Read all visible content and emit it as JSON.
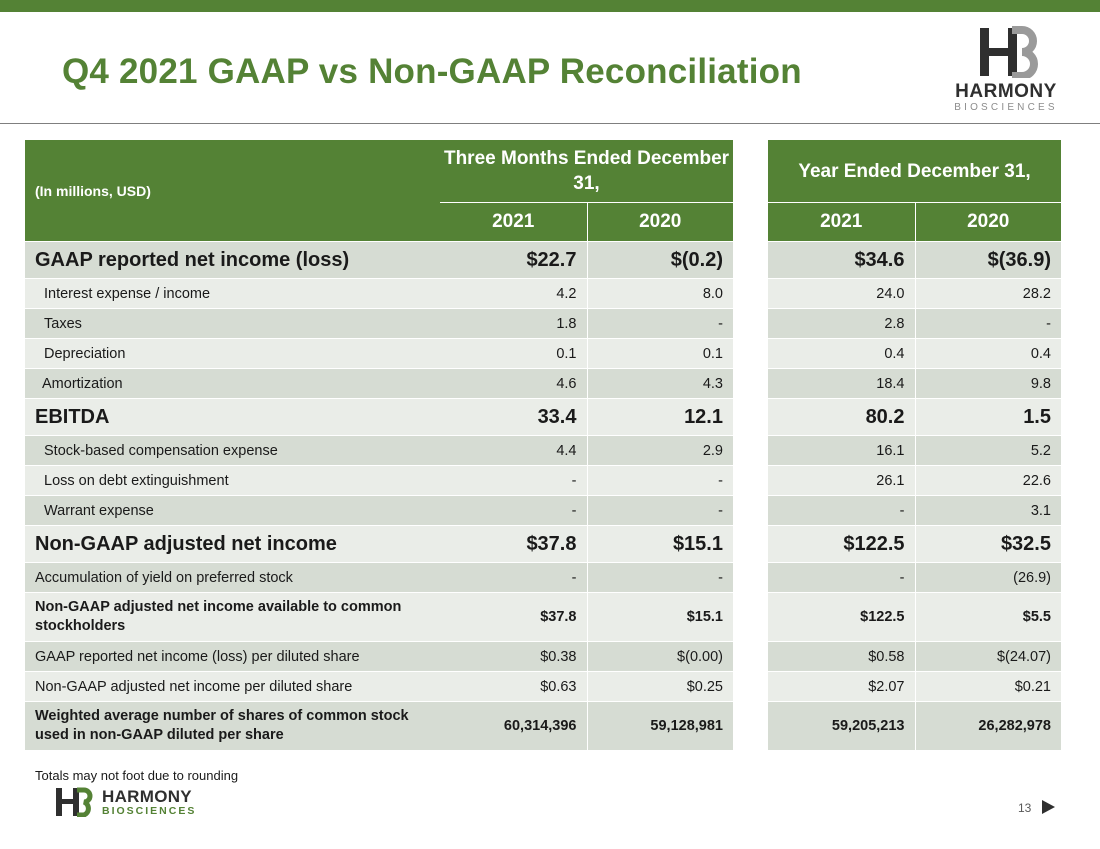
{
  "slide": {
    "title": "Q4 2021 GAAP vs Non-GAAP Reconciliation",
    "footnote": "Totals may not foot due to rounding",
    "page_number": "13",
    "accent_color": "#548235"
  },
  "logo": {
    "word": "HARMONY",
    "sub": "BIOSCIENCES"
  },
  "table": {
    "unit_label": "(In millions, USD)",
    "group_three_months": "Three Months Ended December 31,",
    "group_year": "Year Ended December 31,",
    "years": [
      "2021",
      "2020",
      "2021",
      "2020"
    ],
    "rows": [
      {
        "label": "GAAP reported net income (loss)",
        "values": [
          "$22.7",
          "$(0.2)",
          "$34.6",
          "$(36.9)"
        ]
      },
      {
        "label": "Interest expense / income",
        "values": [
          "4.2",
          "8.0",
          "24.0",
          "28.2"
        ]
      },
      {
        "label": "Taxes",
        "values": [
          "1.8",
          "-",
          "2.8",
          "-"
        ]
      },
      {
        "label": "Depreciation",
        "values": [
          "0.1",
          "0.1",
          "0.4",
          "0.4"
        ]
      },
      {
        "label": "Amortization",
        "values": [
          "4.6",
          "4.3",
          "18.4",
          "9.8"
        ]
      },
      {
        "label": "EBITDA",
        "values": [
          "33.4",
          "12.1",
          "80.2",
          "1.5"
        ]
      },
      {
        "label": "Stock-based compensation expense",
        "values": [
          "4.4",
          "2.9",
          "16.1",
          "5.2"
        ]
      },
      {
        "label": "Loss on debt extinguishment",
        "values": [
          "-",
          "-",
          "26.1",
          "22.6"
        ]
      },
      {
        "label": "Warrant expense",
        "values": [
          "-",
          "-",
          "-",
          "3.1"
        ]
      },
      {
        "label": "Non-GAAP adjusted net income",
        "values": [
          "$37.8",
          "$15.1",
          "$122.5",
          "$32.5"
        ]
      },
      {
        "label": "Accumulation of yield on preferred stock",
        "values": [
          "-",
          "-",
          "-",
          "(26.9)"
        ]
      },
      {
        "label": "Non-GAAP adjusted net income available to common stockholders",
        "values": [
          "$37.8",
          "$15.1",
          "$122.5",
          "$5.5"
        ]
      },
      {
        "label": "GAAP reported net income (loss) per diluted share",
        "values": [
          "$0.38",
          "$(0.00)",
          "$0.58",
          "$(24.07)"
        ]
      },
      {
        "label": "Non-GAAP adjusted net income per diluted share",
        "values": [
          "$0.63",
          "$0.25",
          "$2.07",
          "$0.21"
        ]
      },
      {
        "label": "Weighted average number of shares of common stock used in non-GAAP diluted per share",
        "values": [
          "60,314,396",
          "59,128,981",
          "59,205,213",
          "26,282,978"
        ]
      }
    ]
  }
}
